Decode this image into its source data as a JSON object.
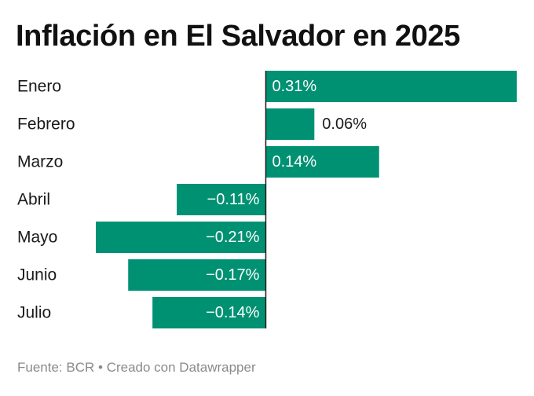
{
  "title": "Inflación en El Salvador en 2025",
  "footer": {
    "source": "Fuente: BCR",
    "separator": "•",
    "credit": "Creado con Datawrapper"
  },
  "colors": {
    "bar": "#009173",
    "label_inside": "#ffffff",
    "label_outside": "#1a1a1a",
    "axis": "#1a1a1a"
  },
  "chart_data": {
    "type": "bar",
    "orientation": "horizontal",
    "categories": [
      "Enero",
      "Febrero",
      "Marzo",
      "Abril",
      "Mayo",
      "Junio",
      "Julio"
    ],
    "values": [
      0.31,
      0.06,
      0.14,
      -0.11,
      -0.21,
      -0.17,
      -0.14
    ],
    "value_labels": [
      "0.31%",
      "0.06%",
      "0.14%",
      "−0.11%",
      "−0.21%",
      "−0.17%",
      "−0.14%"
    ],
    "title": "Inflación en El Salvador en 2025",
    "xlabel": "",
    "ylabel": "",
    "unit": "%",
    "xlim": [
      -0.21,
      0.31
    ],
    "grid": false,
    "legend": "none"
  }
}
